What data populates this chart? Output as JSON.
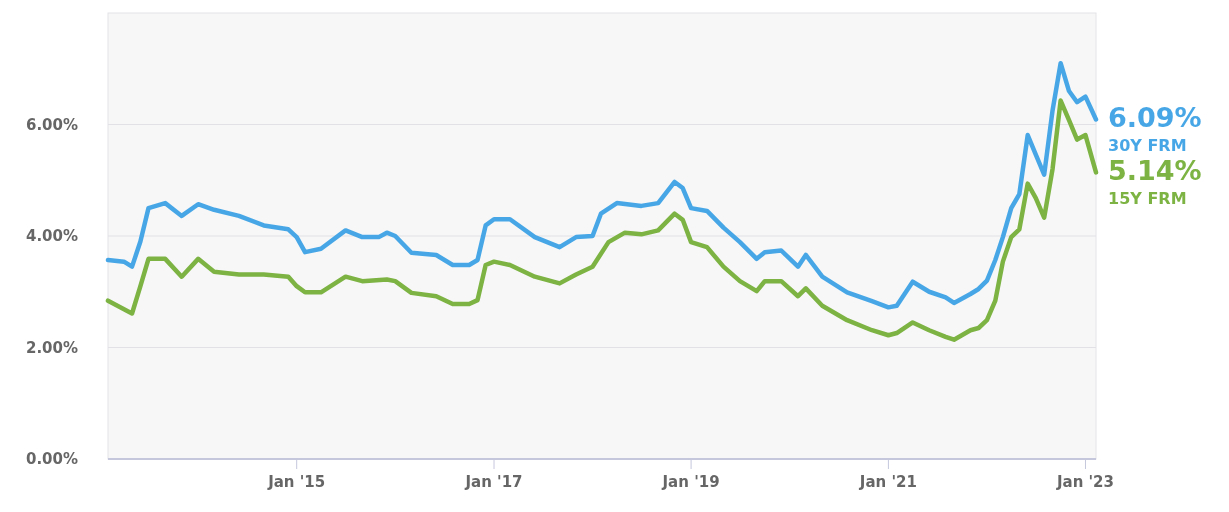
{
  "chart_data": {
    "type": "line",
    "xlim": [
      "2013-02",
      "2023-02-09"
    ],
    "ylim": [
      0,
      8
    ],
    "xticks": [
      {
        "value": "2015-01",
        "label": "Jan '15"
      },
      {
        "value": "2017-01",
        "label": "Jan '17"
      },
      {
        "value": "2019-01",
        "label": "Jan '19"
      },
      {
        "value": "2021-01",
        "label": "Jan '21"
      },
      {
        "value": "2023-01",
        "label": "Jan '23"
      }
    ],
    "yticks": [
      {
        "value": 0,
        "label": "0.00%"
      },
      {
        "value": 2,
        "label": "2.00%"
      },
      {
        "value": 4,
        "label": "4.00%"
      },
      {
        "value": 6,
        "label": "6.00%"
      }
    ],
    "grid": "y",
    "line_style": "solid",
    "marker": "none",
    "annotations": [
      {
        "text": "6.09%",
        "x": "2023-02-09",
        "y": 6.09
      },
      {
        "text": "5.14%",
        "x": "2023-02-09",
        "y": 5.14
      }
    ],
    "series": [
      {
        "name": "30Y FRM",
        "color": "#47a7e6",
        "x": [
          "2013-02",
          "2013-04",
          "2013-05",
          "2013-06",
          "2013-07",
          "2013-09",
          "2013-11",
          "2014-01",
          "2014-03",
          "2014-06",
          "2014-09",
          "2014-12",
          "2015-01",
          "2015-02",
          "2015-04",
          "2015-07",
          "2015-09",
          "2015-11",
          "2015-12",
          "2016-01",
          "2016-03",
          "2016-06",
          "2016-08",
          "2016-10",
          "2016-11",
          "2016-12",
          "2017-01",
          "2017-03",
          "2017-06",
          "2017-09",
          "2017-11",
          "2018-01",
          "2018-02",
          "2018-04",
          "2018-07",
          "2018-09",
          "2018-11",
          "2018-12",
          "2019-01",
          "2019-03",
          "2019-05",
          "2019-07",
          "2019-09",
          "2019-10",
          "2019-12",
          "2020-02",
          "2020-03",
          "2020-05",
          "2020-08",
          "2020-11",
          "2021-01",
          "2021-02",
          "2021-04",
          "2021-06",
          "2021-08",
          "2021-09",
          "2021-11",
          "2021-12",
          "2022-01",
          "2022-02",
          "2022-03",
          "2022-04",
          "2022-05",
          "2022-06",
          "2022-07",
          "2022-08",
          "2022-09",
          "2022-10",
          "2022-11",
          "2022-12",
          "2023-01",
          "2023-02-09"
        ],
        "values": [
          3.57,
          3.54,
          3.45,
          3.9,
          4.5,
          4.59,
          4.36,
          4.57,
          4.47,
          4.36,
          4.19,
          4.12,
          3.98,
          3.71,
          3.77,
          4.1,
          3.98,
          3.98,
          4.06,
          4.0,
          3.7,
          3.66,
          3.48,
          3.48,
          3.57,
          4.19,
          4.3,
          4.3,
          3.98,
          3.8,
          3.98,
          4.0,
          4.4,
          4.59,
          4.54,
          4.59,
          4.97,
          4.86,
          4.5,
          4.45,
          4.15,
          3.89,
          3.59,
          3.71,
          3.74,
          3.45,
          3.66,
          3.27,
          2.99,
          2.83,
          2.72,
          2.75,
          3.18,
          3.0,
          2.9,
          2.8,
          2.96,
          3.05,
          3.2,
          3.57,
          3.98,
          4.5,
          4.75,
          5.81,
          5.46,
          5.1,
          6.25,
          7.1,
          6.6,
          6.4,
          6.5,
          6.09
        ]
      },
      {
        "name": "15Y FRM",
        "color": "#7cb342",
        "x": [
          "2013-02",
          "2013-05",
          "2013-06",
          "2013-07",
          "2013-09",
          "2013-11",
          "2014-01",
          "2014-03",
          "2014-06",
          "2014-09",
          "2014-12",
          "2015-01",
          "2015-02",
          "2015-04",
          "2015-07",
          "2015-09",
          "2015-12",
          "2016-01",
          "2016-03",
          "2016-06",
          "2016-08",
          "2016-10",
          "2016-11",
          "2016-12",
          "2017-01",
          "2017-03",
          "2017-06",
          "2017-09",
          "2017-11",
          "2018-01",
          "2018-03",
          "2018-05",
          "2018-07",
          "2018-09",
          "2018-11",
          "2018-12",
          "2019-01",
          "2019-03",
          "2019-05",
          "2019-07",
          "2019-09",
          "2019-10",
          "2019-12",
          "2020-02",
          "2020-03",
          "2020-05",
          "2020-08",
          "2020-11",
          "2021-01",
          "2021-02",
          "2021-04",
          "2021-06",
          "2021-08",
          "2021-09",
          "2021-11",
          "2021-12",
          "2022-01",
          "2022-02",
          "2022-03",
          "2022-04",
          "2022-05",
          "2022-06",
          "2022-07",
          "2022-08",
          "2022-09",
          "2022-10",
          "2022-11",
          "2022-12",
          "2023-01",
          "2023-02-09"
        ],
        "values": [
          2.84,
          2.61,
          3.1,
          3.59,
          3.59,
          3.27,
          3.59,
          3.36,
          3.31,
          3.31,
          3.27,
          3.1,
          2.99,
          2.99,
          3.27,
          3.19,
          3.22,
          3.19,
          2.98,
          2.92,
          2.78,
          2.78,
          2.85,
          3.48,
          3.54,
          3.48,
          3.27,
          3.15,
          3.31,
          3.45,
          3.89,
          4.06,
          4.03,
          4.1,
          4.4,
          4.29,
          3.89,
          3.8,
          3.45,
          3.19,
          3.01,
          3.19,
          3.19,
          2.92,
          3.06,
          2.75,
          2.49,
          2.31,
          2.22,
          2.26,
          2.45,
          2.31,
          2.19,
          2.14,
          2.31,
          2.35,
          2.49,
          2.84,
          3.54,
          3.98,
          4.12,
          4.94,
          4.68,
          4.33,
          5.2,
          6.43,
          6.08,
          5.73,
          5.81,
          5.14
        ]
      }
    ]
  }
}
